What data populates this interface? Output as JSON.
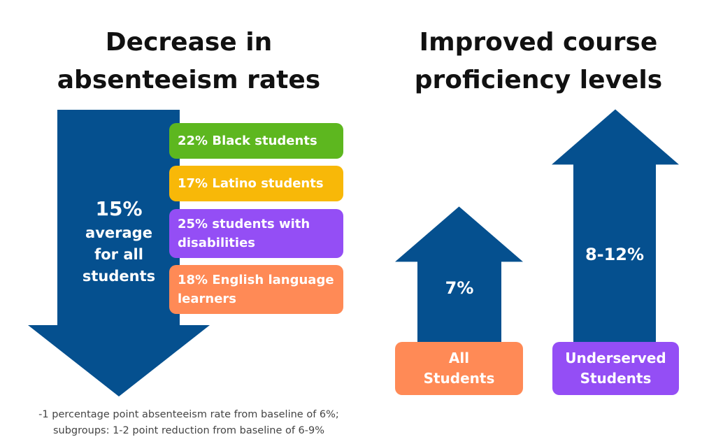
{
  "left_panel": {
    "title_line1": "Decrease in",
    "title_line2": "absenteeism rates",
    "arrow_value": "15%",
    "arrow_line1": "average",
    "arrow_line2": "for all",
    "arrow_line3": "students",
    "arrow_color": "#05508F",
    "footnote_line1": "-1 percentage point absenteeism rate from baseline of 6%;",
    "footnote_line2": "subgroups: 1-2 point reduction from baseline of 6-9%"
  },
  "right_panel": {
    "title_line1": "Improved course",
    "title_line2": "proficiency levels"
  },
  "chart_data": [
    {
      "type": "table",
      "title": "Decrease in absenteeism rates",
      "overall": {
        "label": "average for all students",
        "value": 15,
        "display": "15%"
      },
      "categories": [
        "Black students",
        "Latino students",
        "students with disabilities",
        "English language learners"
      ],
      "values": [
        22,
        17,
        25,
        18
      ],
      "labels": [
        "22% Black students",
        "17% Latino students",
        "25% students with disabilities",
        "18% English language learners"
      ],
      "colors": [
        "#5DB71F",
        "#F8B808",
        "#944EF5",
        "#FF8A56"
      ]
    },
    {
      "type": "bar",
      "title": "Improved course proficiency levels",
      "categories": [
        "All Students",
        "Underserved Students"
      ],
      "category_lines": [
        [
          "All",
          "Students"
        ],
        [
          "Underserved",
          "Students"
        ]
      ],
      "values": [
        7,
        12
      ],
      "value_ranges": [
        [
          7,
          7
        ],
        [
          8,
          12
        ]
      ],
      "value_labels": [
        "7%",
        "8-12%"
      ],
      "bar_color": "#05508F",
      "label_colors": [
        "#FF8A56",
        "#944EF5"
      ]
    }
  ]
}
